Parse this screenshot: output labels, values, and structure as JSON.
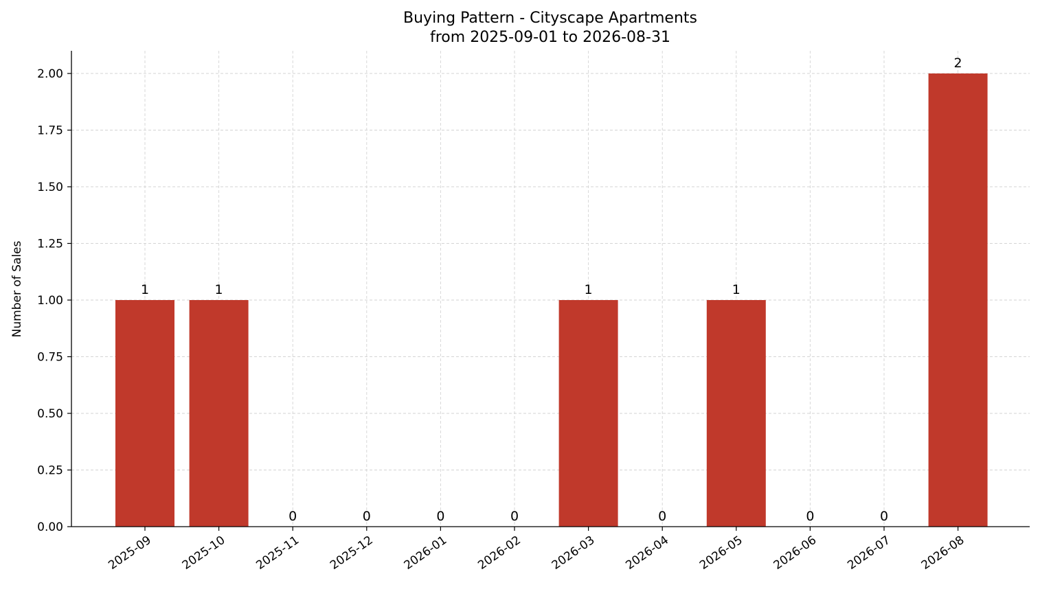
{
  "chart_data": {
    "type": "bar",
    "title": "Buying Pattern - Cityscape Apartments",
    "subtitle": "from 2025-09-01 to 2026-08-31",
    "xlabel": "",
    "ylabel": "Number of Sales",
    "categories": [
      "2025-09",
      "2025-10",
      "2025-11",
      "2025-12",
      "2026-01",
      "2026-02",
      "2026-03",
      "2026-04",
      "2026-05",
      "2026-06",
      "2026-07",
      "2026-08"
    ],
    "values": [
      1,
      1,
      0,
      0,
      0,
      0,
      1,
      0,
      1,
      0,
      0,
      2
    ],
    "data_labels": [
      "1",
      "1",
      "0",
      "0",
      "0",
      "0",
      "1",
      "0",
      "1",
      "0",
      "0",
      "2"
    ],
    "ylim": [
      0,
      2.1
    ],
    "yticks": [
      0,
      0.25,
      0.5,
      0.75,
      1.0,
      1.25,
      1.5,
      1.75,
      2.0
    ],
    "ytick_labels": [
      "0.00",
      "0.25",
      "0.50",
      "0.75",
      "1.00",
      "1.25",
      "1.50",
      "1.75",
      "2.00"
    ],
    "grid": true,
    "bar_color": "#c0392b"
  }
}
